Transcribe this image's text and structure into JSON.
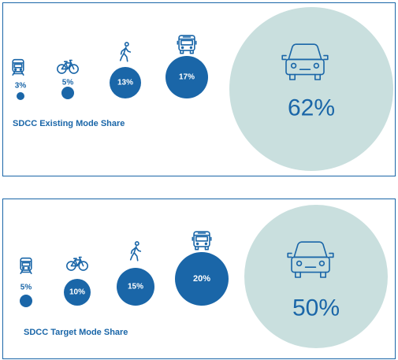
{
  "colors": {
    "accent": "#1a66a8",
    "car_circle": "#c9dfde",
    "border": "#1a66a8",
    "white": "#ffffff"
  },
  "chart_data": [
    {
      "type": "bubble",
      "title": "SDCC Existing Mode Share",
      "categories": [
        "train",
        "bicycle",
        "walking",
        "bus",
        "car"
      ],
      "icons": [
        "train-icon",
        "bicycle-icon",
        "pedestrian-icon",
        "bus-icon",
        "car-icon"
      ],
      "values": [
        3,
        5,
        13,
        17,
        62
      ],
      "labels": [
        "3%",
        "5%",
        "13%",
        "17%",
        "62%"
      ],
      "unit": "%"
    },
    {
      "type": "bubble",
      "title": "SDCC Target Mode Share",
      "categories": [
        "train",
        "bicycle",
        "walking",
        "bus",
        "car"
      ],
      "icons": [
        "train-icon",
        "bicycle-icon",
        "pedestrian-icon",
        "bus-icon",
        "car-icon"
      ],
      "values": [
        5,
        10,
        15,
        20,
        50
      ],
      "labels": [
        "5%",
        "10%",
        "15%",
        "20%",
        "50%"
      ],
      "unit": "%"
    }
  ]
}
